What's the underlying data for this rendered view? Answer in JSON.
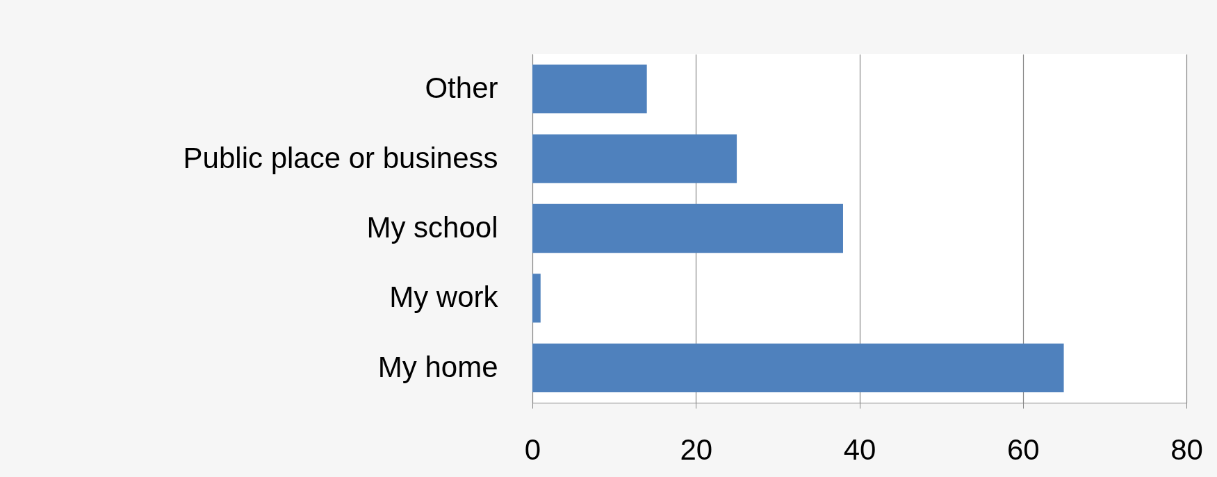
{
  "chart_data": {
    "type": "bar",
    "orientation": "horizontal",
    "categories": [
      "Other",
      "Public place or business",
      "My school",
      "My work",
      "My home"
    ],
    "values": [
      14,
      25,
      38,
      1,
      65
    ],
    "color": "#4f81bd",
    "xlim": [
      0,
      80
    ],
    "xticks": [
      0,
      20,
      40,
      60,
      80
    ],
    "grid": true
  }
}
